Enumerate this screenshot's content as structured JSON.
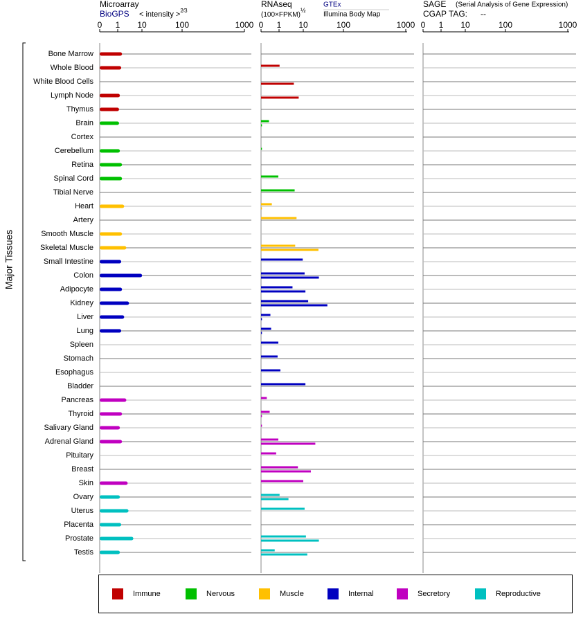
{
  "y_label": "Major Tissues",
  "categories": [
    "Bone Marrow",
    "Whole Blood",
    "White Blood Cells",
    "Lymph Node",
    "Thymus",
    "Brain",
    "Cortex",
    "Cerebellum",
    "Retina",
    "Spinal Cord",
    "Tibial Nerve",
    "Heart",
    "Artery",
    "Smooth Muscle",
    "Skeletal Muscle",
    "Small Intestine",
    "Colon",
    "Adipocyte",
    "Kidney",
    "Liver",
    "Lung",
    "Spleen",
    "Stomach",
    "Esophagus",
    "Bladder",
    "Pancreas",
    "Thyroid",
    "Salivary Gland",
    "Adrenal Gland",
    "Pituitary",
    "Breast",
    "Skin",
    "Ovary",
    "Uterus",
    "Placenta",
    "Prostate",
    "Testis"
  ],
  "colors": [
    "#c00000",
    "#c00000",
    "#c00000",
    "#c00000",
    "#c00000",
    "#00c000",
    "#00c000",
    "#00c000",
    "#00c000",
    "#00c000",
    "#00c000",
    "#ffc000",
    "#ffc000",
    "#ffc000",
    "#ffc000",
    "#0000c0",
    "#0000c0",
    "#0000c0",
    "#0000c0",
    "#0000c0",
    "#0000c0",
    "#0000c0",
    "#0000c0",
    "#0000c0",
    "#0000c0",
    "#c000c0",
    "#c000c0",
    "#c000c0",
    "#c000c0",
    "#c000c0",
    "#c000c0",
    "#c000c0",
    "#00c0c0",
    "#00c0c0",
    "#00c0c0",
    "#00c0c0",
    "#00c0c0"
  ],
  "legend": [
    {
      "name": "Immune",
      "color": "#c00000"
    },
    {
      "name": "Nervous",
      "color": "#00c000"
    },
    {
      "name": "Muscle",
      "color": "#ffc000"
    },
    {
      "name": "Internal",
      "color": "#0000c0"
    },
    {
      "name": "Secretory",
      "color": "#c000c0"
    },
    {
      "name": "Reproductive",
      "color": "#00c0c0"
    }
  ],
  "chart_data": [
    {
      "type": "bar",
      "title": "Microarray",
      "unit": "< intensity >",
      "unit_exponent": "2⁄3",
      "xlim": [
        0,
        1000
      ],
      "xticks": [
        0,
        1,
        10,
        100,
        1000
      ],
      "series": [
        {
          "name": "BioGPS",
          "values": [
            2.6,
            2.3,
            null,
            1.8,
            1.5,
            1.5,
            null,
            1.8,
            2.6,
            2.6,
            null,
            3.4,
            null,
            2.6,
            4.2,
            2.3,
            10.3,
            2.6,
            5.2,
            3.4,
            2.3,
            null,
            null,
            null,
            null,
            4.2,
            2.6,
            1.8,
            2.6,
            null,
            null,
            4.7,
            1.8,
            5,
            2.3,
            6.8,
            1.8
          ]
        }
      ]
    },
    {
      "type": "bar",
      "title": "RNAseq",
      "unit": "(100×FPKM)",
      "unit_exponent": "½",
      "xlim": [
        0,
        1000
      ],
      "xticks": [
        0,
        1,
        10,
        100,
        1000
      ],
      "series": [
        {
          "name": "GTEx",
          "values": [
            null,
            1.2,
            null,
            null,
            null,
            0.44,
            null,
            0.05,
            null,
            0.96,
            6.8,
            0.6,
            7.5,
            null,
            7,
            9.8,
            13,
            6,
            21,
            0.52,
            0.56,
            0.96,
            0.92,
            1.5,
            14.8,
            0.32,
            0.48,
            0.05,
            0.96,
            0.84,
            8,
            10,
            1.2,
            13,
            null,
            16,
            0.76
          ]
        },
        {
          "name": "Illumina Body Map",
          "values": [
            null,
            null,
            6.5,
            8.3,
            null,
            0.05,
            null,
            null,
            null,
            null,
            null,
            0.05,
            null,
            null,
            44,
            null,
            45,
            14.8,
            64,
            0.05,
            0.05,
            null,
            null,
            null,
            null,
            null,
            0.05,
            null,
            37,
            null,
            27,
            null,
            4.5,
            null,
            null,
            45,
            19
          ]
        }
      ]
    },
    {
      "type": "bar",
      "title": "SAGE",
      "subtitle": "(Serial Analysis of Gene Expression)",
      "tag_label": "CGAP TAG:",
      "tag": "--",
      "xlim": [
        0,
        1000
      ],
      "xticks": [
        0,
        1,
        10,
        100,
        1000
      ],
      "series": []
    }
  ]
}
